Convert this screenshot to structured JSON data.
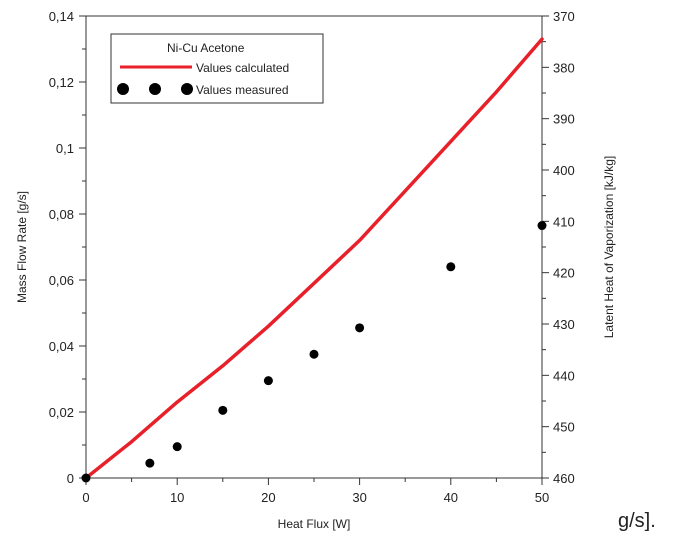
{
  "chart_data": {
    "type": "scatter",
    "xlabel": "Heat Flux [W]",
    "ylabel": "Mass Flow Rate [g/s]",
    "y2label": "Latent Heat of Vaporization [kJ/kg]",
    "xlim": [
      0,
      50
    ],
    "ylim": [
      0,
      0.14
    ],
    "y2lim": [
      460,
      370
    ],
    "x_ticks": [
      0,
      10,
      20,
      30,
      40,
      50
    ],
    "x_tick_labels": [
      "0",
      "10",
      "20",
      "30",
      "40",
      "50"
    ],
    "y_ticks": [
      0,
      0.02,
      0.04,
      0.06,
      0.08,
      0.1,
      0.12,
      0.14
    ],
    "y_tick_labels": [
      "0",
      "0,02",
      "0,04",
      "0,06",
      "0,08",
      "0,1",
      "0,12",
      "0,14"
    ],
    "y2_ticks": [
      370,
      380,
      390,
      400,
      410,
      420,
      430,
      440,
      450,
      460
    ],
    "y2_tick_labels": [
      "370",
      "380",
      "390",
      "400",
      "410",
      "420",
      "430",
      "440",
      "450",
      "460"
    ],
    "grid": false,
    "legend": {
      "title": "Ni-Cu Acetone",
      "position": "top-left",
      "entries": [
        "Values calculated",
        "Values measured"
      ]
    },
    "series": [
      {
        "name": "Values calculated",
        "kind": "line",
        "color": "#e8202a",
        "x": [
          0,
          5,
          10,
          15,
          20,
          25,
          30,
          35,
          40,
          45,
          50
        ],
        "y": [
          0,
          0.011,
          0.023,
          0.034,
          0.046,
          0.059,
          0.072,
          0.087,
          0.102,
          0.117,
          0.133
        ]
      },
      {
        "name": "Values measured",
        "kind": "scatter",
        "color": "#000000",
        "x": [
          0,
          7,
          10,
          15,
          20,
          25,
          30,
          40,
          50
        ],
        "y": [
          0,
          0.0045,
          0.0095,
          0.0205,
          0.0295,
          0.0375,
          0.0455,
          0.064,
          0.0765
        ]
      }
    ]
  },
  "trailing_text": "g/s]."
}
